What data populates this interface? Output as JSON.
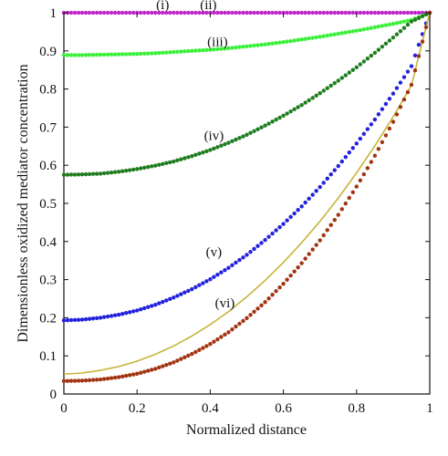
{
  "chart_data": {
    "type": "scatter",
    "title": "",
    "xlabel": "Normalized distance",
    "ylabel": "Dimensionless oxidized mediator concentration",
    "xlim": [
      0,
      1
    ],
    "ylim": [
      0,
      1
    ],
    "xticks": [
      "0",
      "0.2",
      "0.4",
      "0.6",
      "0.8",
      "1"
    ],
    "yticks": [
      "0",
      "0.1",
      "0.2",
      "0.3",
      "0.4",
      "0.5",
      "0.6",
      "0.7",
      "0.8",
      "0.9",
      "1"
    ],
    "grid": false,
    "legend": "none",
    "x": [
      0,
      0.05,
      0.1,
      0.15,
      0.2,
      0.25,
      0.3,
      0.35,
      0.4,
      0.45,
      0.5,
      0.55,
      0.6,
      0.65,
      0.7,
      0.75,
      0.8,
      0.85,
      0.9,
      0.95,
      1
    ],
    "series": [
      {
        "label": "(i)",
        "color": "#3fb8c6",
        "marker": "line",
        "label_at": [
          0.27,
          1.0
        ],
        "values": [
          1,
          1,
          1,
          1,
          1,
          1,
          1,
          1,
          1,
          1,
          1,
          1,
          1,
          1,
          1,
          1,
          1,
          1,
          1,
          1,
          1
        ]
      },
      {
        "label": "(ii)",
        "color": "#c026c9",
        "marker": "dots",
        "label_at": [
          0.395,
          1.0
        ],
        "values": [
          1,
          1,
          1,
          1,
          1,
          1,
          1,
          1,
          1,
          1,
          1,
          1,
          1,
          1,
          1,
          1,
          1,
          1,
          1,
          1,
          1
        ]
      },
      {
        "label": "(iii)",
        "color": "#3af03a",
        "marker": "dots",
        "label_at": [
          0.42,
          0.903
        ],
        "values": [
          0.889,
          0.889,
          0.89,
          0.891,
          0.892,
          0.894,
          0.897,
          0.9,
          0.903,
          0.907,
          0.912,
          0.917,
          0.923,
          0.93,
          0.937,
          0.945,
          0.953,
          0.962,
          0.971,
          0.981,
          1.0
        ]
      },
      {
        "label": "(iv)",
        "color": "#1f7d1f",
        "marker": "dots",
        "label_at": [
          0.41,
          0.657
        ],
        "values": [
          0.575,
          0.576,
          0.578,
          0.583,
          0.59,
          0.599,
          0.61,
          0.624,
          0.64,
          0.659,
          0.68,
          0.704,
          0.73,
          0.758,
          0.789,
          0.822,
          0.857,
          0.895,
          0.935,
          0.977,
          1.0
        ]
      },
      {
        "label": "(v)",
        "color": "#2222dd",
        "marker": "dots",
        "label_at": [
          0.41,
          0.352
        ],
        "values": [
          0.193,
          0.195,
          0.2,
          0.208,
          0.219,
          0.234,
          0.253,
          0.275,
          0.301,
          0.331,
          0.365,
          0.404,
          0.446,
          0.492,
          0.543,
          0.598,
          0.657,
          0.72,
          0.788,
          0.86,
          1.0
        ]
      },
      {
        "label": "(vi)",
        "color": "#c8b43a",
        "marker": "line",
        "label_at": [
          0.44,
          0.218
        ],
        "values": [
          0.052,
          0.055,
          0.062,
          0.072,
          0.086,
          0.104,
          0.126,
          0.152,
          0.182,
          0.216,
          0.255,
          0.298,
          0.345,
          0.397,
          0.453,
          0.514,
          0.58,
          0.651,
          0.727,
          0.81,
          1.0
        ]
      },
      {
        "label": "",
        "color": "#a23412",
        "marker": "dots",
        "values": [
          0.034,
          0.035,
          0.038,
          0.044,
          0.053,
          0.066,
          0.083,
          0.105,
          0.131,
          0.162,
          0.199,
          0.241,
          0.289,
          0.343,
          0.403,
          0.47,
          0.544,
          0.625,
          0.714,
          0.811,
          1.0
        ]
      }
    ]
  }
}
